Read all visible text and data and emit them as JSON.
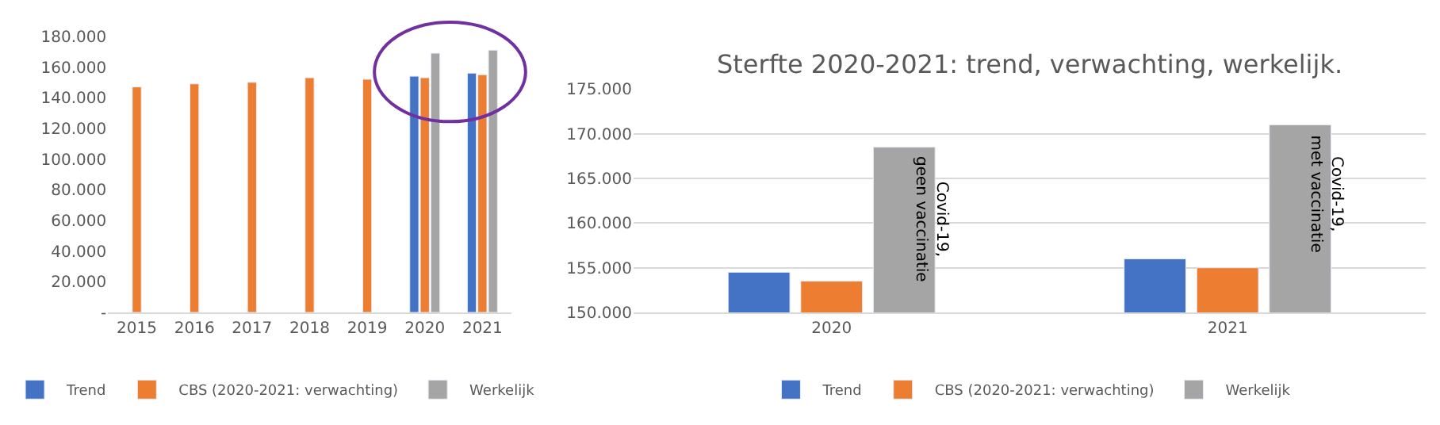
{
  "chart_data": [
    {
      "type": "bar",
      "categories": [
        "2015",
        "2016",
        "2017",
        "2018",
        "2019",
        "2020",
        "2021"
      ],
      "series": [
        {
          "name": "Trend",
          "color": "#4472c4",
          "values": [
            null,
            null,
            null,
            null,
            null,
            154000,
            156000
          ]
        },
        {
          "name": "CBS (2020-2021: verwachting)",
          "color": "#ed7d31",
          "values": [
            147000,
            149000,
            150000,
            153000,
            152000,
            153000,
            155000
          ]
        },
        {
          "name": "Werkelijk",
          "color": "#a5a5a5",
          "values": [
            null,
            null,
            null,
            null,
            null,
            169000,
            171000
          ]
        }
      ],
      "ylim": [
        0,
        180000
      ],
      "yticks": [
        {
          "value": 0,
          "label": "-"
        },
        {
          "value": 20000,
          "label": "20.000"
        },
        {
          "value": 40000,
          "label": "40.000"
        },
        {
          "value": 60000,
          "label": "60.000"
        },
        {
          "value": 80000,
          "label": "80.000"
        },
        {
          "value": 100000,
          "label": "100.000"
        },
        {
          "value": 120000,
          "label": "120.000"
        },
        {
          "value": 140000,
          "label": "140.000"
        },
        {
          "value": 160000,
          "label": "160.000"
        },
        {
          "value": 180000,
          "label": "180.000"
        }
      ],
      "grid": false,
      "legend": "bottom"
    },
    {
      "type": "bar",
      "title": "Sterfte 2020-2021: trend, verwachting, werkelijk.",
      "categories": [
        "2020",
        "2021"
      ],
      "series": [
        {
          "name": "Trend",
          "color": "#4472c4",
          "values": [
            154500,
            156000
          ]
        },
        {
          "name": "CBS (2020-2021: verwachting)",
          "color": "#ed7d31",
          "values": [
            153500,
            155000
          ]
        },
        {
          "name": "Werkelijk",
          "color": "#a5a5a5",
          "values": [
            168500,
            171000
          ]
        }
      ],
      "ylim": [
        150000,
        175000
      ],
      "yticks": [
        {
          "value": 150000,
          "label": "150.000"
        },
        {
          "value": 155000,
          "label": "155.000"
        },
        {
          "value": 160000,
          "label": "160.000"
        },
        {
          "value": 165000,
          "label": "165.000"
        },
        {
          "value": 170000,
          "label": "170.000"
        },
        {
          "value": 175000,
          "label": "175.000"
        }
      ],
      "annotations": [
        "Covid-19,\ngeen vaccinatie",
        "Covid-19,\nmet vaccinatie"
      ],
      "grid": "y",
      "legend": "bottom"
    }
  ]
}
